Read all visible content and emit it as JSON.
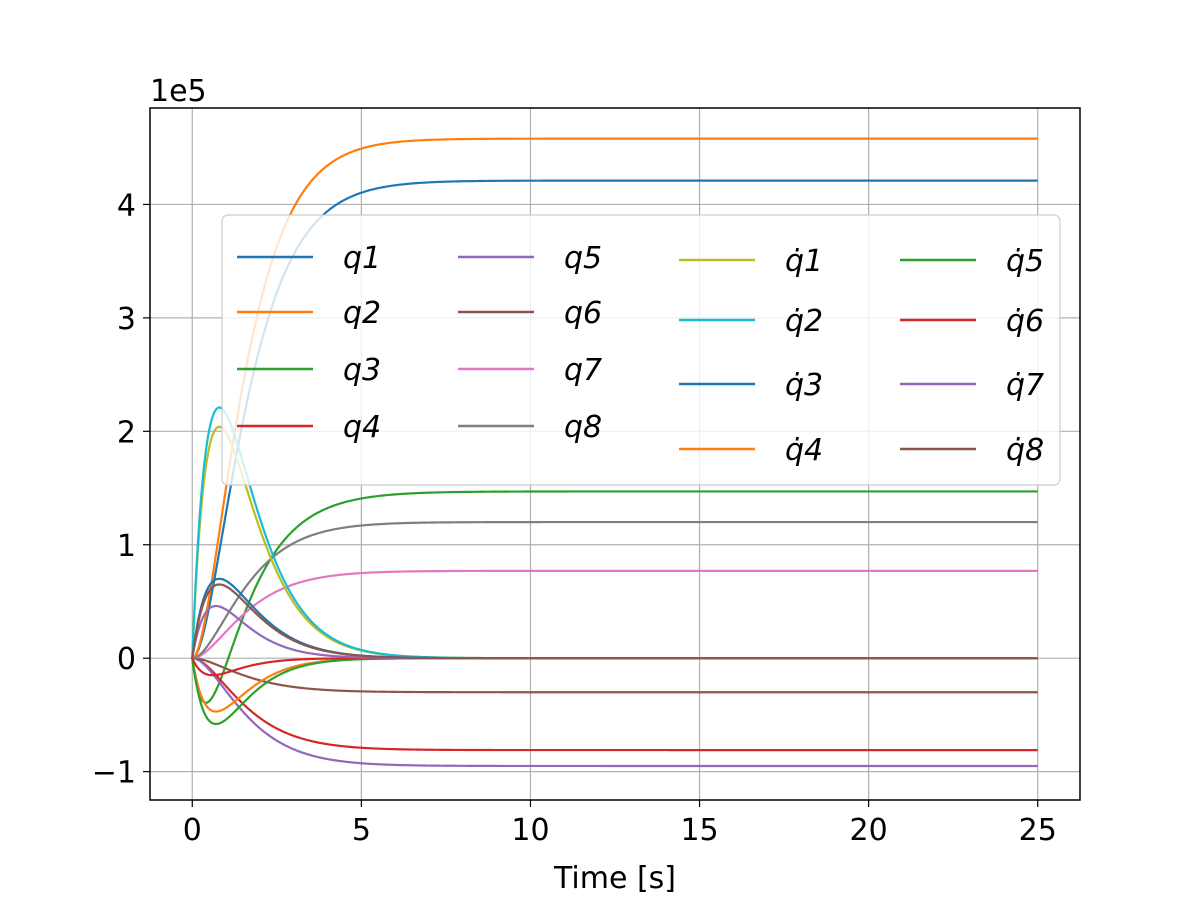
{
  "chart_data": {
    "type": "line",
    "title": "",
    "xlabel": "Time [s]",
    "ylabel": "",
    "offset_label": "1e5",
    "xlim": [
      -1.25,
      26.25
    ],
    "ylim": [
      -1.25,
      4.85
    ],
    "x_ticks": [
      0,
      5,
      10,
      15,
      20,
      25
    ],
    "x_tick_labels": [
      "0",
      "5",
      "10",
      "15",
      "20",
      "25"
    ],
    "y_ticks": [
      -1,
      0,
      1,
      2,
      3,
      4
    ],
    "y_tick_labels": [
      "−1",
      "0",
      "1",
      "2",
      "3",
      "4"
    ],
    "grid": true,
    "legend_position": "upper-right",
    "legend_columns": 4,
    "series": [
      {
        "name": "q1",
        "color": "#1f77b4",
        "final": 4.21,
        "peak": 0,
        "peak_t": 0,
        "tau": 0.9
      },
      {
        "name": "q2",
        "color": "#ff7f0e",
        "final": 4.58,
        "peak": 0,
        "peak_t": 0,
        "tau": 0.85
      },
      {
        "name": "q3",
        "color": "#2ca02c",
        "final": 1.47,
        "peak": -0.52,
        "peak_t": 0.6,
        "tau": 1.0
      },
      {
        "name": "q4",
        "color": "#d62728",
        "final": -0.81,
        "peak": 0,
        "peak_t": 0,
        "tau": 0.9
      },
      {
        "name": "q5",
        "color": "#9467bd",
        "final": -0.95,
        "peak": 0,
        "peak_t": 0,
        "tau": 0.9
      },
      {
        "name": "q6",
        "color": "#8c564b",
        "final": -0.3,
        "peak": 0,
        "peak_t": 0,
        "tau": 0.9
      },
      {
        "name": "q7",
        "color": "#e377c2",
        "final": 0.77,
        "peak": 0,
        "peak_t": 0,
        "tau": 0.9
      },
      {
        "name": "q8",
        "color": "#7f7f7f",
        "final": 1.2,
        "peak": 0,
        "peak_t": 0,
        "tau": 0.9
      },
      {
        "name": "q̇1",
        "color": "#bcbd22",
        "final": 0,
        "peak": 2.04,
        "peak_t": 0.8,
        "tau": 1.0
      },
      {
        "name": "q̇2",
        "color": "#17becf",
        "final": 0,
        "peak": 2.21,
        "peak_t": 0.8,
        "tau": 1.0
      },
      {
        "name": "q̇3",
        "color": "#1f77b4",
        "final": 0,
        "peak": 0.7,
        "peak_t": 0.8,
        "tau": 1.0
      },
      {
        "name": "q̇4",
        "color": "#ff7f0e",
        "final": 0,
        "peak": -0.47,
        "peak_t": 0.7,
        "tau": 0.9
      },
      {
        "name": "q̇5",
        "color": "#2ca02c",
        "final": 0,
        "peak": -0.58,
        "peak_t": 0.7,
        "tau": 0.9
      },
      {
        "name": "q̇6",
        "color": "#d62728",
        "final": 0,
        "peak": -0.15,
        "peak_t": 0.6,
        "tau": 0.9
      },
      {
        "name": "q̇7",
        "color": "#9467bd",
        "final": 0,
        "peak": 0.46,
        "peak_t": 0.7,
        "tau": 0.9
      },
      {
        "name": "q̇8",
        "color": "#8c564b",
        "final": 0,
        "peak": 0.65,
        "peak_t": 0.8,
        "tau": 0.9
      }
    ],
    "t_end": 25
  }
}
